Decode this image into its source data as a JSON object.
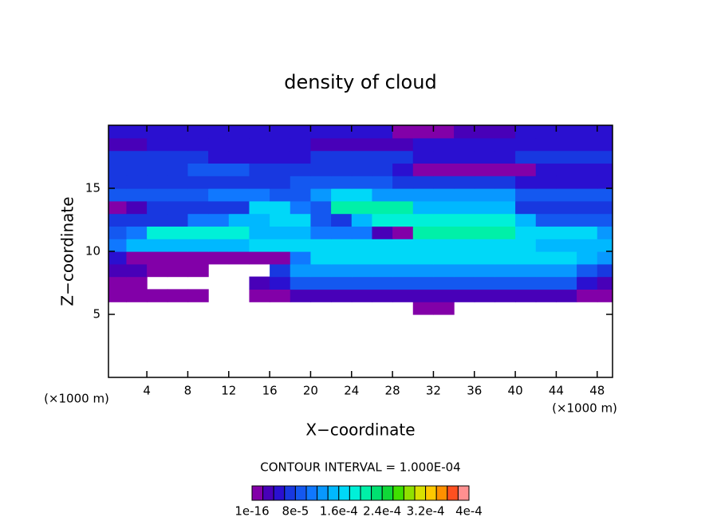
{
  "chart_data": {
    "type": "contour",
    "title": "density of cloud",
    "xlabel": "X−coordinate",
    "ylabel": "Z−coordinate",
    "x_unit": "(×1000 m)",
    "y_unit": "(×1000 m)",
    "contour_interval_label": "CONTOUR INTERVAL = 1.000E-04",
    "xlim": [
      0.25,
      49.5
    ],
    "ylim": [
      0,
      20
    ],
    "xticks": [
      4,
      8,
      12,
      16,
      20,
      24,
      28,
      32,
      36,
      40,
      44,
      48
    ],
    "yticks": [
      5,
      10,
      15
    ],
    "x": [
      1,
      3,
      5,
      7,
      9,
      11,
      13,
      15,
      17,
      19,
      21,
      23,
      25,
      27,
      29,
      31,
      33,
      35,
      37,
      39,
      41,
      43,
      45,
      47,
      49
    ],
    "y": [
      5.5,
      6.5,
      7.5,
      8.5,
      9.5,
      10.5,
      11.5,
      12.5,
      13.5,
      14.5,
      15.5,
      16.5,
      17.5,
      18.5,
      19.5
    ],
    "z": [
      [
        null,
        null,
        null,
        null,
        null,
        null,
        null,
        null,
        null,
        null,
        null,
        null,
        null,
        null,
        null,
        1e-05,
        1e-05,
        null,
        null,
        null,
        null,
        null,
        null,
        null,
        null
      ],
      [
        1e-05,
        1e-05,
        1e-05,
        1e-05,
        1e-05,
        null,
        null,
        1e-05,
        1e-05,
        3e-05,
        3e-05,
        3e-05,
        3e-05,
        3e-05,
        3e-05,
        3e-05,
        3e-05,
        3e-05,
        3e-05,
        3e-05,
        3e-05,
        3e-05,
        3e-05,
        1e-05,
        1e-05
      ],
      [
        1e-05,
        1e-05,
        null,
        null,
        null,
        null,
        null,
        3e-05,
        5e-05,
        9e-05,
        9e-05,
        9e-05,
        9e-05,
        9e-05,
        9e-05,
        9e-05,
        9e-05,
        9e-05,
        9e-05,
        9e-05,
        9e-05,
        9e-05,
        9e-05,
        5e-05,
        3e-05
      ],
      [
        3e-05,
        3e-05,
        1e-05,
        1e-05,
        1e-05,
        null,
        null,
        null,
        7e-05,
        0.00013,
        0.00013,
        0.00013,
        0.00013,
        0.00013,
        0.00013,
        0.00013,
        0.00013,
        0.00013,
        0.00013,
        0.00013,
        0.00013,
        0.00013,
        0.00013,
        9e-05,
        7e-05
      ],
      [
        5e-05,
        1e-05,
        1e-05,
        1e-05,
        1e-05,
        1e-05,
        1e-05,
        1e-05,
        1e-05,
        0.00011,
        0.00017,
        0.00017,
        0.00017,
        0.00017,
        0.00017,
        0.00017,
        0.00017,
        0.00017,
        0.00017,
        0.00017,
        0.00017,
        0.00017,
        0.00017,
        0.00015,
        0.00013
      ],
      [
        0.00011,
        0.00015,
        0.00015,
        0.00015,
        0.00015,
        0.00015,
        0.00015,
        0.00017,
        0.00017,
        0.00017,
        0.00017,
        0.00017,
        0.00017,
        0.00017,
        0.00017,
        0.00017,
        0.00017,
        0.00017,
        0.00017,
        0.00017,
        0.00017,
        0.00015,
        0.00015,
        0.00015,
        0.00015
      ],
      [
        9e-05,
        0.00011,
        0.00019,
        0.00019,
        0.00019,
        0.00019,
        0.00019,
        0.00015,
        0.00015,
        0.00015,
        0.00011,
        0.00011,
        0.00011,
        3e-05,
        1e-05,
        0.00021,
        0.00021,
        0.00021,
        0.00021,
        0.00021,
        0.00017,
        0.00017,
        0.00017,
        0.00017,
        0.00013
      ],
      [
        7e-05,
        7e-05,
        7e-05,
        7e-05,
        0.00011,
        0.00011,
        0.00015,
        0.00015,
        0.00017,
        0.00017,
        9e-05,
        7e-05,
        0.00015,
        0.00019,
        0.00019,
        0.00019,
        0.00019,
        0.00019,
        0.00019,
        0.00019,
        0.00015,
        9e-05,
        9e-05,
        9e-05,
        9e-05
      ],
      [
        1e-05,
        3e-05,
        7e-05,
        7e-05,
        7e-05,
        7e-05,
        7e-05,
        0.00017,
        0.00017,
        0.00011,
        9e-05,
        0.00021,
        0.00021,
        0.00021,
        0.00021,
        0.00015,
        0.00015,
        0.00015,
        0.00015,
        0.00015,
        7e-05,
        7e-05,
        7e-05,
        7e-05,
        7e-05
      ],
      [
        9e-05,
        9e-05,
        9e-05,
        9e-05,
        9e-05,
        0.00011,
        0.00011,
        0.00011,
        9e-05,
        9e-05,
        0.00013,
        0.00017,
        0.00017,
        0.00013,
        0.00013,
        0.00013,
        0.00013,
        0.00013,
        0.00013,
        0.00013,
        9e-05,
        9e-05,
        9e-05,
        9e-05,
        9e-05
      ],
      [
        7e-05,
        7e-05,
        7e-05,
        7e-05,
        7e-05,
        7e-05,
        7e-05,
        7e-05,
        7e-05,
        9e-05,
        9e-05,
        9e-05,
        9e-05,
        9e-05,
        7e-05,
        7e-05,
        7e-05,
        7e-05,
        7e-05,
        7e-05,
        5e-05,
        5e-05,
        5e-05,
        5e-05,
        5e-05
      ],
      [
        7e-05,
        7e-05,
        7e-05,
        7e-05,
        9e-05,
        9e-05,
        9e-05,
        7e-05,
        7e-05,
        7e-05,
        7e-05,
        7e-05,
        7e-05,
        7e-05,
        5e-05,
        1e-05,
        1e-05,
        1e-05,
        1e-05,
        1e-05,
        1e-05,
        5e-05,
        5e-05,
        5e-05,
        5e-05
      ],
      [
        7e-05,
        7e-05,
        7e-05,
        7e-05,
        7e-05,
        5e-05,
        5e-05,
        5e-05,
        5e-05,
        5e-05,
        7e-05,
        7e-05,
        7e-05,
        7e-05,
        7e-05,
        5e-05,
        5e-05,
        5e-05,
        5e-05,
        5e-05,
        7e-05,
        7e-05,
        7e-05,
        7e-05,
        7e-05
      ],
      [
        3e-05,
        3e-05,
        5e-05,
        5e-05,
        5e-05,
        5e-05,
        5e-05,
        5e-05,
        5e-05,
        5e-05,
        3e-05,
        3e-05,
        3e-05,
        3e-05,
        3e-05,
        5e-05,
        5e-05,
        5e-05,
        5e-05,
        5e-05,
        5e-05,
        5e-05,
        5e-05,
        5e-05,
        5e-05
      ],
      [
        5e-05,
        5e-05,
        5e-05,
        5e-05,
        5e-05,
        5e-05,
        5e-05,
        5e-05,
        5e-05,
        5e-05,
        5e-05,
        5e-05,
        5e-05,
        5e-05,
        1e-05,
        1e-05,
        1e-05,
        3e-05,
        3e-05,
        3e-05,
        5e-05,
        5e-05,
        5e-05,
        5e-05,
        5e-05
      ]
    ],
    "colorbar": {
      "clim": [
        0,
        0.0004
      ],
      "colors": [
        "#8200a8",
        "#4800b8",
        "#2a10d0",
        "#1838e0",
        "#1458f0",
        "#1078ff",
        "#0898ff",
        "#00b8ff",
        "#00d8f8",
        "#00f0d8",
        "#00f0a8",
        "#00e070",
        "#10d838",
        "#40e000",
        "#90e000",
        "#d8e000",
        "#ffc800",
        "#ff9000",
        "#ff5020",
        "#ff9090"
      ],
      "ticks": [
        {
          "value": 1e-16,
          "label": "1e-16"
        },
        {
          "value": 8e-05,
          "label": "8e-5"
        },
        {
          "value": 0.00016,
          "label": "1.6e-4"
        },
        {
          "value": 0.00024,
          "label": "2.4e-4"
        },
        {
          "value": 0.00032,
          "label": "3.2e-4"
        },
        {
          "value": 0.0004,
          "label": "4e-4"
        }
      ]
    }
  }
}
